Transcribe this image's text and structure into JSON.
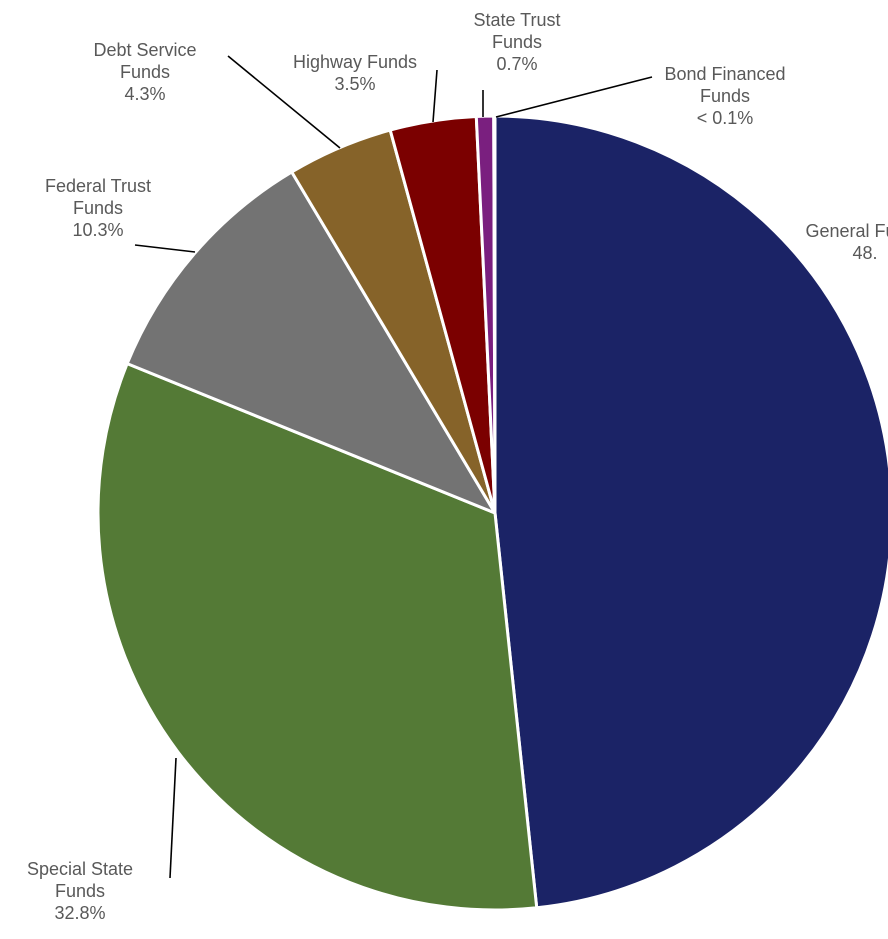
{
  "chart_data": {
    "type": "pie",
    "title": "",
    "start_angle_deg": 0,
    "direction": "clockwise",
    "slices": [
      {
        "label": [
          "General Funds"
        ],
        "value_label": "48.",
        "value": 48.3,
        "color": "#1b2366"
      },
      {
        "label": [
          "Special State",
          "Funds"
        ],
        "value_label": "32.8%",
        "value": 32.8,
        "color": "#547a36"
      },
      {
        "label": [
          "Federal Trust",
          "Funds"
        ],
        "value_label": "10.3%",
        "value": 10.3,
        "color": "#737373"
      },
      {
        "label": [
          "Debt Service",
          "Funds"
        ],
        "value_label": "4.3%",
        "value": 4.3,
        "color": "#866329"
      },
      {
        "label": [
          "Highway Funds"
        ],
        "value_label": "3.5%",
        "value": 3.5,
        "color": "#7b0000"
      },
      {
        "label": [
          "State Trust",
          "Funds"
        ],
        "value_label": "0.7%",
        "value": 0.7,
        "color": "#7a1f7f"
      },
      {
        "label": [
          "Bond Financed",
          "Funds"
        ],
        "value_label": "< 0.1%",
        "value": 0.05,
        "color": "#1f3864"
      }
    ]
  }
}
